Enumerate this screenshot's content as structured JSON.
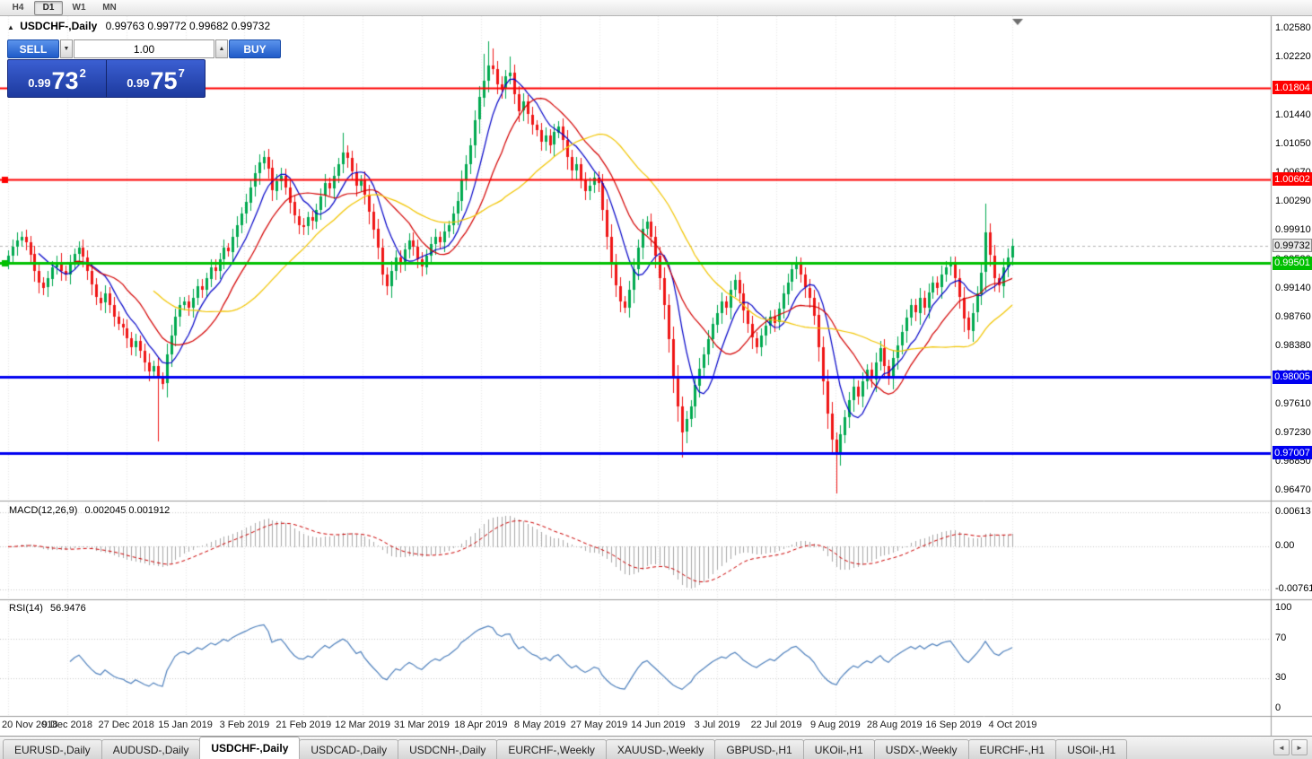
{
  "toolbar": {
    "timeframes": [
      {
        "label": "H4",
        "active": false
      },
      {
        "label": "D1",
        "active": true
      },
      {
        "label": "W1",
        "active": false
      },
      {
        "label": "MN",
        "active": false
      }
    ]
  },
  "chart_header": {
    "collapse_icon": "▲",
    "title": "USDCHF-,Daily",
    "ohlc_text": "0.99763 0.99772 0.99682 0.99732"
  },
  "trade_panel": {
    "sell_label": "SELL",
    "buy_label": "BUY",
    "lot_value": "1.00",
    "spin_down": "▼",
    "spin_up": "▲",
    "bid": {
      "small": "0.99",
      "big": "73",
      "sup": "2"
    },
    "ask": {
      "small": "0.99",
      "big": "75",
      "sup": "7"
    }
  },
  "price_axis_labels": [
    "1.02580",
    "1.02220",
    "1.01860",
    "1.01440",
    "1.01050",
    "1.00670",
    "1.00290",
    "0.99910",
    "0.99530",
    "0.99140",
    "0.98760",
    "0.98380",
    "0.98000",
    "0.97610",
    "0.97230",
    "0.96850",
    "0.96470"
  ],
  "hlines": [
    {
      "label": "1.01804",
      "value": 1.01804,
      "color": "#fe0000",
      "thickness": 2,
      "handle": false
    },
    {
      "label": "1.00602",
      "value": 1.00602,
      "color": "#fe0000",
      "thickness": 2,
      "handle": true
    },
    {
      "label": "0.99501",
      "value": 0.99501,
      "color": "#00c000",
      "thickness": 3,
      "handle": true
    },
    {
      "label": "0.98005",
      "value": 0.98005,
      "color": "#0000f0",
      "thickness": 3,
      "handle": false
    },
    {
      "label": "0.97007",
      "value": 0.97007,
      "color": "#0000f0",
      "thickness": 3,
      "handle": false
    }
  ],
  "current_price_tag": {
    "label": "0.99732",
    "value": 0.99732,
    "bg": "#e8e8e8",
    "fg": "#000000"
  },
  "dates": [
    "20 Nov 2018",
    "9 Dec 2018",
    "27 Dec 2018",
    "15 Jan 2019",
    "3 Feb 2019",
    "21 Feb 2019",
    "12 Mar 2019",
    "31 Mar 2019",
    "18 Apr 2019",
    "8 May 2019",
    "27 May 2019",
    "14 Jun 2019",
    "3 Jul 2019",
    "22 Jul 2019",
    "9 Aug 2019",
    "28 Aug 2019",
    "16 Sep 2019",
    "4 Oct 2019"
  ],
  "macd_panel": {
    "label": "MACD(12,26,9)",
    "values": "0.002045 0.001912",
    "axis_labels": [
      "0.00613",
      "0.00",
      "-0.00761"
    ],
    "axis_values": [
      0.00613,
      0,
      -0.00761
    ]
  },
  "rsi_panel": {
    "label": "RSI(14)",
    "value": "56.9476",
    "axis_labels": [
      "100",
      "70",
      "30",
      "0"
    ],
    "axis_values": [
      100,
      70,
      30,
      0
    ],
    "level_lines": [
      70,
      30
    ]
  },
  "tabs": [
    {
      "label": "EURUSD-,Daily",
      "active": false
    },
    {
      "label": "AUDUSD-,Daily",
      "active": false
    },
    {
      "label": "USDCHF-,Daily",
      "active": true
    },
    {
      "label": "USDCAD-,Daily",
      "active": false
    },
    {
      "label": "USDCNH-,Daily",
      "active": false
    },
    {
      "label": "EURCHF-,Weekly",
      "active": false
    },
    {
      "label": "XAUUSD-,Weekly",
      "active": false
    },
    {
      "label": "GBPUSD-,H1",
      "active": false
    },
    {
      "label": "UKOil-,H1",
      "active": false
    },
    {
      "label": "USDX-,Weekly",
      "active": false
    },
    {
      "label": "EURCHF-,H1",
      "active": false
    },
    {
      "label": "USOil-,H1",
      "active": false
    }
  ],
  "tab_nav": {
    "left": "◄",
    "right": "►"
  },
  "chart_data": {
    "type": "candlestick",
    "symbol": "USDCHF-",
    "timeframe": "Daily",
    "title": "USDCHF-,Daily",
    "last_ohlc": {
      "open": 0.99763,
      "high": 0.99772,
      "low": 0.99682,
      "close": 0.99732
    },
    "x_range": [
      "20 Nov 2018",
      "11 Oct 2019"
    ],
    "price_top": 1.02745,
    "price_bottom": 0.96382,
    "first_open": 0.995,
    "up_color": "#00a94f",
    "down_color": "#ef1515",
    "closes": [
      0.996,
      0.9972,
      0.998,
      0.9985,
      0.9978,
      0.9962,
      0.994,
      0.9925,
      0.9918,
      0.993,
      0.9945,
      0.9952,
      0.994,
      0.9935,
      0.995,
      0.9962,
      0.997,
      0.9958,
      0.994,
      0.9922,
      0.9905,
      0.9898,
      0.991,
      0.9895,
      0.988,
      0.987,
      0.9865,
      0.9852,
      0.984,
      0.9848,
      0.9835,
      0.982,
      0.9808,
      0.9815,
      0.98,
      0.9792,
      0.983,
      0.9855,
      0.988,
      0.9895,
      0.99,
      0.9892,
      0.9905,
      0.992,
      0.9915,
      0.993,
      0.9945,
      0.994,
      0.9955,
      0.997,
      0.9965,
      0.9985,
      1.0,
      1.0015,
      1.003,
      1.005,
      1.0068,
      1.0082,
      1.009,
      1.0075,
      1.0045,
      1.0058,
      1.0065,
      1.005,
      1.003,
      1.0012,
      1.0,
      0.9998,
      1.001,
      1.0005,
      1.002,
      1.0038,
      1.0055,
      1.0048,
      1.0065,
      1.008,
      1.0095,
      1.0088,
      1.007,
      1.0052,
      1.006,
      1.004,
      1.0018,
      0.9995,
      0.997,
      0.9935,
      0.992,
      0.994,
      0.9958,
      0.995,
      0.9968,
      0.998,
      0.9972,
      0.9955,
      0.9945,
      0.996,
      0.9975,
      0.9985,
      0.9978,
      0.9992,
      1.0,
      1.0015,
      1.0032,
      1.006,
      1.008,
      1.0105,
      1.0138,
      1.0168,
      1.019,
      1.021,
      1.0205,
      1.0185,
      1.0178,
      1.0195,
      1.02,
      1.0172,
      1.015,
      1.0162,
      1.0145,
      1.0132,
      1.0125,
      1.011,
      1.0118,
      1.0105,
      1.0122,
      1.013,
      1.0112,
      1.009,
      1.0072,
      1.008,
      1.006,
      1.0045,
      1.0052,
      1.0062,
      1.0055,
      1.002,
      0.9985,
      0.995,
      0.992,
      0.99,
      0.9892,
      0.9915,
      0.9942,
      0.997,
      0.9995,
      1.0005,
      0.9985,
      0.996,
      0.993,
      0.9895,
      0.985,
      0.98,
      0.9762,
      0.9728,
      0.9745,
      0.9762,
      0.979,
      0.9812,
      0.983,
      0.985,
      0.987,
      0.9885,
      0.99,
      0.9892,
      0.9915,
      0.9928,
      0.991,
      0.9888,
      0.987,
      0.9852,
      0.984,
      0.9855,
      0.9868,
      0.988,
      0.9872,
      0.989,
      0.991,
      0.9925,
      0.9942,
      0.995,
      0.9935,
      0.9918,
      0.9905,
      0.9882,
      0.984,
      0.9795,
      0.9752,
      0.9718,
      0.97,
      0.9725,
      0.9748,
      0.977,
      0.9788,
      0.9775,
      0.9795,
      0.981,
      0.9798,
      0.982,
      0.9838,
      0.9815,
      0.98,
      0.9825,
      0.9842,
      0.986,
      0.9878,
      0.9895,
      0.9885,
      0.9905,
      0.9892,
      0.9912,
      0.9925,
      0.9918,
      0.9935,
      0.9945,
      0.995,
      0.993,
      0.9905,
      0.9878,
      0.9862,
      0.9885,
      0.991,
      0.9938,
      0.999,
      0.996,
      0.993,
      0.992,
      0.9945,
      0.9958,
      0.99732
    ],
    "wick_overrides": [
      {
        "i": 34,
        "low": 0.9716
      },
      {
        "i": 76,
        "high": 1.0121
      },
      {
        "i": 108,
        "high": 1.0225
      },
      {
        "i": 109,
        "high": 1.0242
      },
      {
        "i": 110,
        "high": 1.0232
      },
      {
        "i": 114,
        "high": 1.0221
      },
      {
        "i": 153,
        "low": 0.9694
      },
      {
        "i": 188,
        "low": 0.9647
      },
      {
        "i": 222,
        "high": 1.0028
      }
    ],
    "moving_averages": [
      {
        "period": 8,
        "color": "#0000c8"
      },
      {
        "period": 16,
        "color": "#d40000"
      },
      {
        "period": 34,
        "color": "#f2c500"
      }
    ],
    "macd": {
      "fast": 12,
      "slow": 26,
      "signal": 9,
      "hist_color": "#a8a8a8",
      "signal_color": "#cc0000"
    },
    "rsi": {
      "period": 14,
      "color": "#4f81bd"
    }
  }
}
